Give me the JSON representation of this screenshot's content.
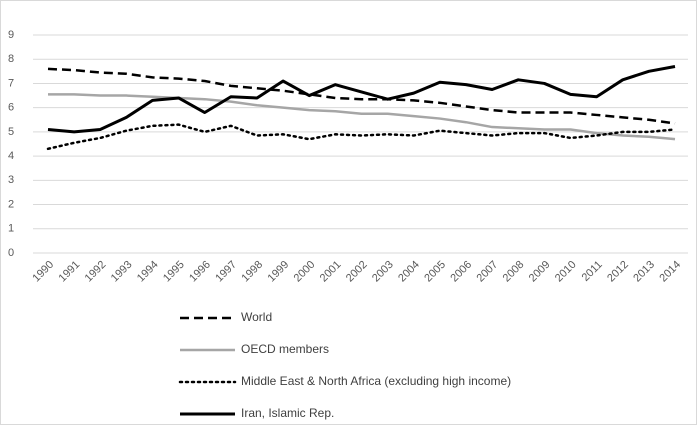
{
  "chart_data": {
    "type": "line",
    "categories": [
      "1990",
      "1991",
      "1992",
      "1993",
      "1994",
      "1995",
      "1996",
      "1997",
      "1998",
      "1999",
      "2000",
      "2001",
      "2002",
      "2003",
      "2004",
      "2005",
      "2006",
      "2007",
      "2008",
      "2009",
      "2010",
      "2011",
      "2012",
      "2013",
      "2014"
    ],
    "series": [
      {
        "name": "World",
        "color": "#000000",
        "style": "dashed",
        "values": [
          7.6,
          7.55,
          7.45,
          7.4,
          7.25,
          7.2,
          7.1,
          6.9,
          6.8,
          6.7,
          6.55,
          6.4,
          6.35,
          6.35,
          6.3,
          6.2,
          6.05,
          5.9,
          5.8,
          5.8,
          5.8,
          5.7,
          5.6,
          5.5,
          5.35
        ]
      },
      {
        "name": "OECD members",
        "color": "#a6a6a6",
        "style": "solid",
        "values": [
          6.55,
          6.55,
          6.5,
          6.5,
          6.45,
          6.4,
          6.35,
          6.25,
          6.1,
          6.0,
          5.9,
          5.85,
          5.75,
          5.75,
          5.65,
          5.55,
          5.4,
          5.2,
          5.15,
          5.1,
          5.1,
          4.95,
          4.85,
          4.8,
          4.7
        ]
      },
      {
        "name": "Middle East & North Africa (excluding high income)",
        "color": "#000000",
        "style": "dotted",
        "values": [
          4.3,
          4.55,
          4.75,
          5.05,
          5.25,
          5.3,
          5.0,
          5.25,
          4.85,
          4.9,
          4.7,
          4.9,
          4.85,
          4.9,
          4.85,
          5.05,
          4.95,
          4.85,
          4.95,
          4.95,
          4.75,
          4.85,
          5.0,
          5.0,
          5.1
        ]
      },
      {
        "name": "Iran, Islamic Rep.",
        "color": "#000000",
        "style": "solid",
        "values": [
          5.1,
          5.0,
          5.1,
          5.6,
          6.3,
          6.4,
          5.8,
          6.45,
          6.4,
          7.1,
          6.5,
          6.95,
          6.65,
          6.35,
          6.6,
          7.05,
          6.95,
          6.75,
          7.15,
          7.0,
          6.55,
          6.45,
          7.15,
          7.5,
          7.7
        ]
      }
    ],
    "ylim": [
      0,
      9
    ],
    "yticks": [
      0,
      1,
      2,
      3,
      4,
      5,
      6,
      7,
      8,
      9
    ],
    "grid": true,
    "legend": "bottom"
  }
}
